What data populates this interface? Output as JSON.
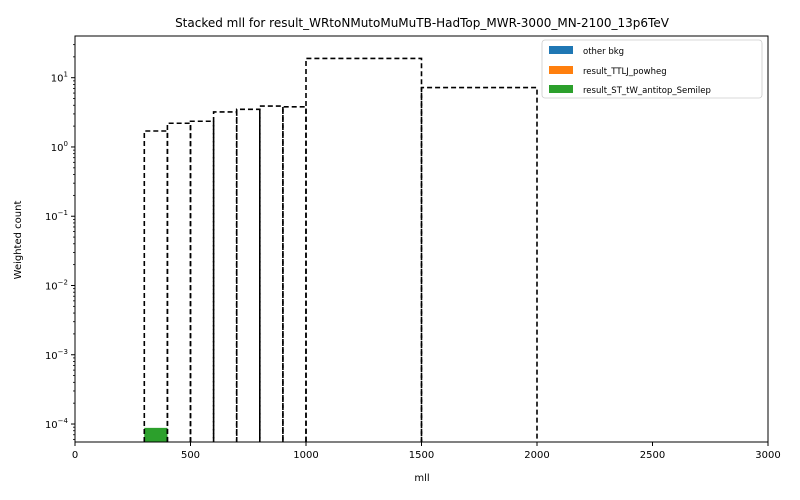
{
  "chart_data": {
    "type": "bar",
    "title": "Stacked mll for result_WRtoNMutoMuMuTB-HadTop_MWR-3000_MN-2100_13p6TeV",
    "xlabel": "mll",
    "ylabel": "Weighted count",
    "xlim": [
      0,
      3000
    ],
    "ylim": [
      5.5e-05,
      40
    ],
    "yscale": "log",
    "grid": false,
    "legend_position": "top-right",
    "x_ticks": [
      0,
      500,
      1000,
      1500,
      2000,
      2500,
      3000
    ],
    "y_ticks": [
      {
        "value": 0.0001,
        "mantissa": "10",
        "exp": "−4"
      },
      {
        "value": 0.001,
        "mantissa": "10",
        "exp": "−3"
      },
      {
        "value": 0.01,
        "mantissa": "10",
        "exp": "−2"
      },
      {
        "value": 0.1,
        "mantissa": "10",
        "exp": "−1"
      },
      {
        "value": 1,
        "mantissa": "10",
        "exp": "0"
      },
      {
        "value": 10,
        "mantissa": "10",
        "exp": "1"
      }
    ],
    "bin_edges": [
      300,
      400,
      500,
      600,
      700,
      800,
      900,
      1000,
      1500,
      2000
    ],
    "series": [
      {
        "name": "other bkg",
        "color": "#1f77b4",
        "values": [
          0,
          0,
          0,
          0,
          0,
          0,
          0,
          0,
          0
        ]
      },
      {
        "name": "result_TTLJ_powheg",
        "color": "#ff7f0e",
        "values": [
          0,
          0,
          0,
          0,
          0,
          0,
          0,
          0,
          0
        ]
      },
      {
        "name": "result_ST_tW_antitop_Semilep",
        "color": "#2ca02c",
        "values": [
          8.8e-05,
          0,
          0,
          0,
          0,
          0,
          0,
          0,
          0
        ]
      }
    ],
    "signal_outline": {
      "style": "dashed",
      "color": "#000000",
      "values": [
        1.7,
        2.2,
        2.35,
        3.2,
        3.5,
        3.9,
        3.8,
        19,
        7.2
      ]
    }
  }
}
